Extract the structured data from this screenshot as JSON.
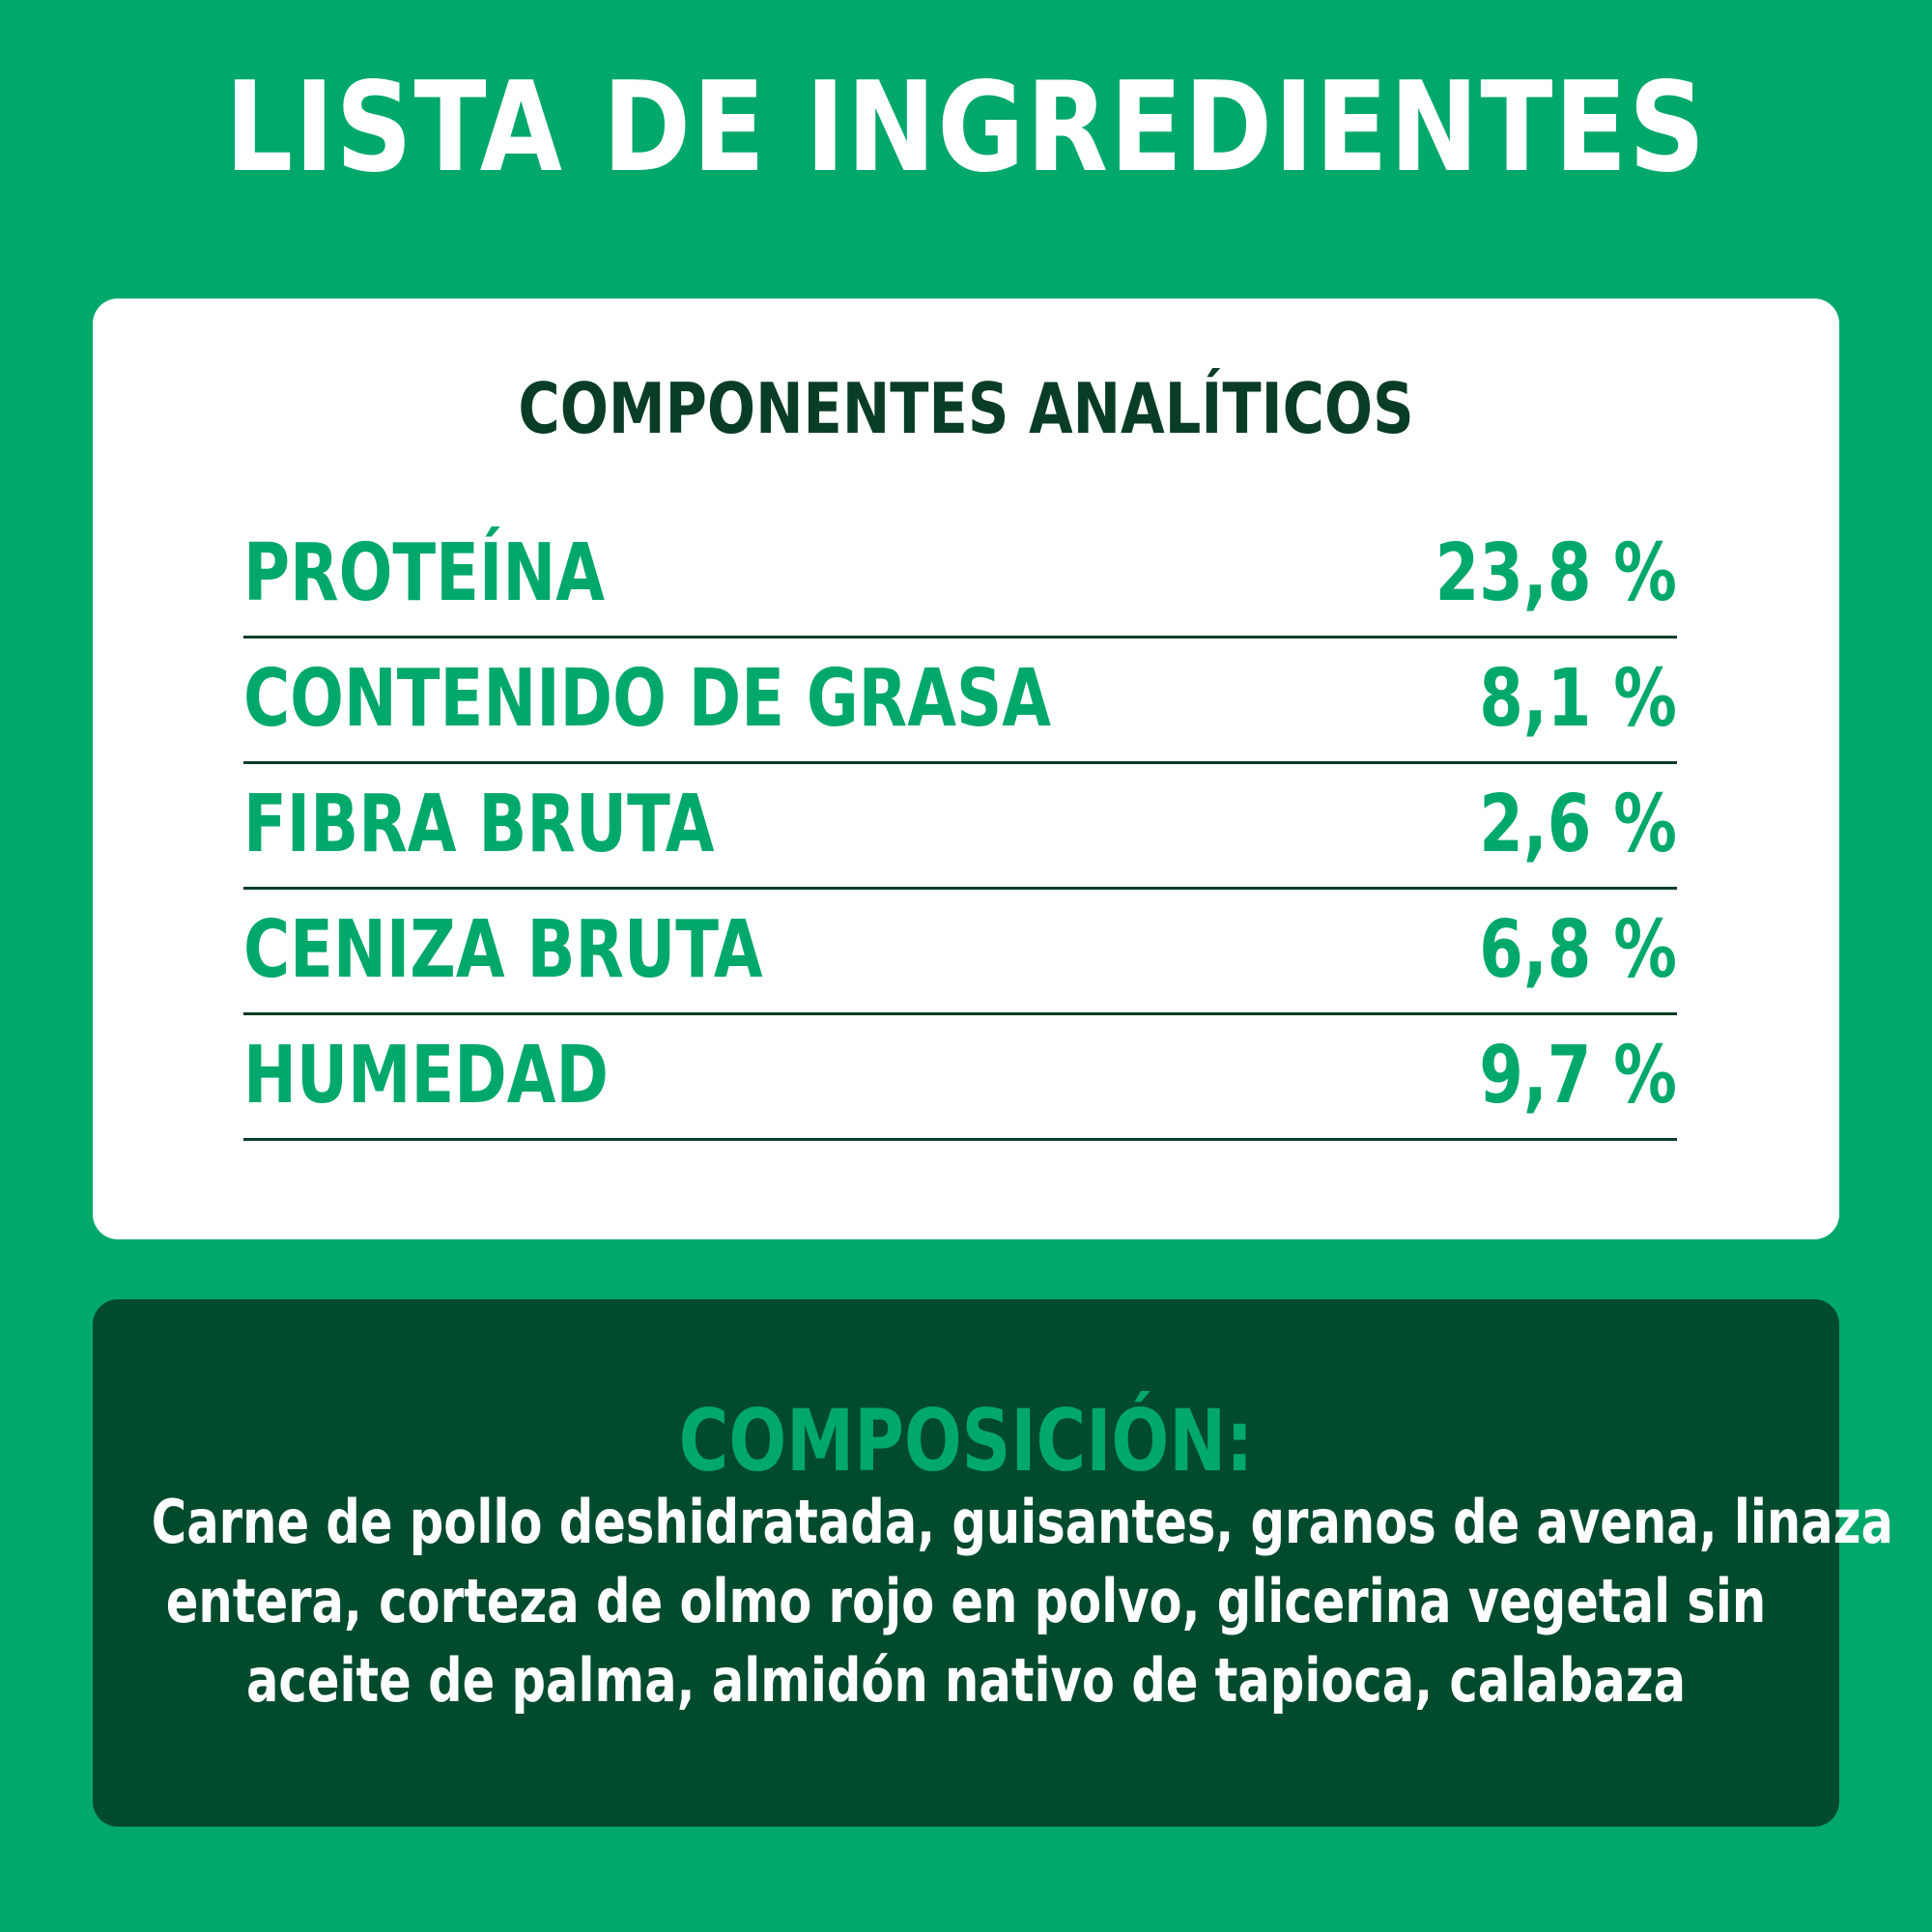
{
  "title": "LISTA DE INGREDIENTES",
  "analytics": {
    "heading": "COMPONENTES ANALÍTICOS",
    "rows": [
      {
        "label": "PROTEÍNA",
        "value": "23,8 %"
      },
      {
        "label": "CONTENIDO DE GRASA",
        "value": "8,1 %"
      },
      {
        "label": "FIBRA BRUTA",
        "value": "2,6 %"
      },
      {
        "label": "CENIZA BRUTA",
        "value": "6,8 %"
      },
      {
        "label": "HUMEDAD",
        "value": "9,7 %"
      }
    ]
  },
  "composition": {
    "heading": "COMPOSICIÓN:",
    "lines": [
      "Carne de pollo deshidratada, guisantes, granos de avena, linaza",
      "entera, corteza de olmo rojo en polvo, glicerina vegetal sin",
      "aceite de palma, almidón nativo de tapioca, calabaza"
    ]
  },
  "colors": {
    "background": "#00a86b",
    "card": "#ffffff",
    "dark_green": "#004b2e",
    "heading_dark": "#0a3d26",
    "accent": "#00a86b"
  }
}
